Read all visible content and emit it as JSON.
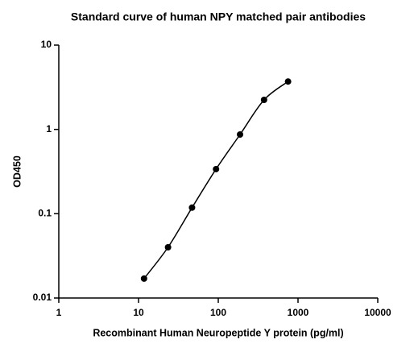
{
  "chart_data": {
    "type": "scatter",
    "title": "Standard curve of human NPY matched pair antibodies",
    "xlabel": "Recombinant Human Neuropeptide Y protein (pg/ml)",
    "ylabel": "OD450",
    "xscale": "log",
    "yscale": "log",
    "xlim": [
      1,
      10000
    ],
    "xticks": [
      1,
      10,
      100,
      1000,
      10000
    ],
    "ylim": [
      0.01,
      10
    ],
    "yticks": [
      0.01,
      0.1,
      1,
      10
    ],
    "series": [
      {
        "color": "#000000",
        "x": [
          11.72,
          23.44,
          46.88,
          93.75,
          187.5,
          375,
          750
        ],
        "values": [
          0.017,
          0.04,
          0.118,
          0.338,
          0.87,
          2.24,
          3.7
        ]
      }
    ]
  }
}
